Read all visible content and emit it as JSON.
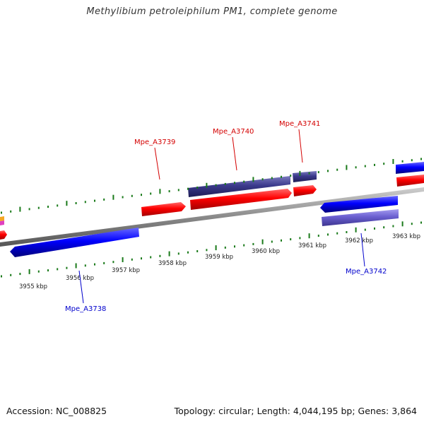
{
  "title": "Methylibium petroleiphilum PM1, complete genome",
  "footer": {
    "accession": "Accession: NC_008825",
    "summary": "Topology: circular; Length: 4,044,195 bp; Genes: 3,864"
  },
  "colors": {
    "forward_cds": "#ff0000",
    "reverse_cds": "#0000ff",
    "forward_rna": "#3b3a8c",
    "reverse_rna": "#6a5fd0",
    "backbone": "#888888",
    "tick": "#1a7a1a",
    "label_forward": "#d40000",
    "label_reverse": "#0000cc"
  },
  "outer_ticks": [
    "3961 kbp",
    "3962 kbp",
    "3963 kbp"
  ],
  "inner_ticks": [
    "3955 kbp",
    "3956 kbp",
    "3957 kbp",
    "3958 kbp",
    "3959 kbp",
    "3960 kbp"
  ],
  "gene_labels": {
    "a3739": "Mpe_A3739",
    "a3740": "Mpe_A3740",
    "a3741": "Mpe_A3741",
    "a3738": "Mpe_A3738",
    "a3742": "Mpe_A3742"
  }
}
